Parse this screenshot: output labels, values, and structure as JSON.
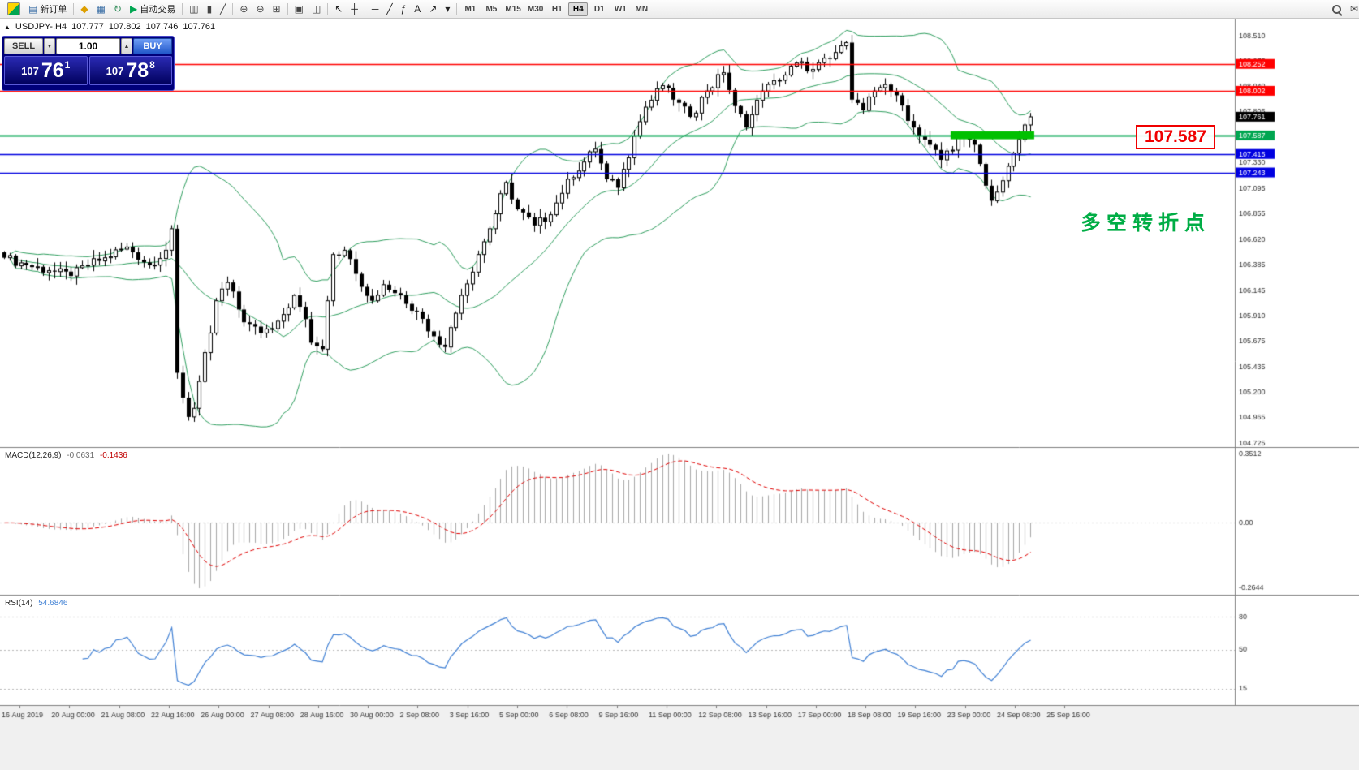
{
  "toolbar": {
    "items": [
      {
        "name": "app-logo",
        "type": "logo"
      },
      {
        "name": "new-order-button",
        "glyph": "▤",
        "glyph_color": "#3a6ea5",
        "label": "新订单"
      },
      {
        "name": "toolbar-separator-1",
        "type": "sep"
      },
      {
        "name": "market-watch-icon",
        "glyph": "◆",
        "glyph_color": "#dd9f00"
      },
      {
        "name": "data-window-icon",
        "glyph": "▦",
        "glyph_color": "#3a6ea5"
      },
      {
        "name": "refresh-icon",
        "glyph": "↻",
        "glyph_color": "#2e8b57"
      },
      {
        "name": "autotrading-button",
        "glyph": "▶",
        "glyph_color": "#00a651",
        "label": "自动交易"
      },
      {
        "name": "toolbar-separator-2",
        "type": "sep"
      },
      {
        "name": "bar-chart-icon",
        "glyph": "▥",
        "glyph_color": "#444444"
      },
      {
        "name": "candlestick-chart-icon",
        "glyph": "▮",
        "glyph_color": "#444444"
      },
      {
        "name": "line-chart-icon",
        "glyph": "╱",
        "glyph_color": "#444444"
      },
      {
        "name": "toolbar-separator-3",
        "type": "sep"
      },
      {
        "name": "zoom-in-icon",
        "glyph": "⊕",
        "glyph_color": "#444444"
      },
      {
        "name": "zoom-out-icon",
        "glyph": "⊖",
        "glyph_color": "#444444"
      },
      {
        "name": "auto-scroll-icon",
        "glyph": "⊞",
        "glyph_color": "#444444"
      },
      {
        "name": "toolbar-separator-4",
        "type": "sep"
      },
      {
        "name": "tile-windows-icon",
        "glyph": "▣",
        "glyph_color": "#444444"
      },
      {
        "name": "cascade-windows-icon",
        "glyph": "◫",
        "glyph_color": "#444444"
      },
      {
        "name": "toolbar-separator-5",
        "type": "sep"
      },
      {
        "name": "cursor-icon",
        "glyph": "↖",
        "glyph_color": "#222222"
      },
      {
        "name": "crosshair-icon",
        "glyph": "┼",
        "glyph_color": "#222222"
      },
      {
        "name": "toolbar-separator-6",
        "type": "sep"
      },
      {
        "name": "horizontal-line-icon",
        "glyph": "─",
        "glyph_color": "#222222"
      },
      {
        "name": "trendline-icon",
        "glyph": "╱",
        "glyph_color": "#222222"
      },
      {
        "name": "fibonacci-icon",
        "glyph": "ƒ",
        "glyph_color": "#222222"
      },
      {
        "name": "text-tool-icon",
        "glyph": "A",
        "glyph_color": "#222222"
      },
      {
        "name": "arrow-tool-icon",
        "glyph": "↗",
        "glyph_color": "#222222"
      },
      {
        "name": "shapes-dropdown-icon",
        "glyph": "▾",
        "glyph_color": "#222222"
      },
      {
        "name": "toolbar-separator-7",
        "type": "sep"
      },
      {
        "name": "timeframe-group",
        "type": "tf-group"
      },
      {
        "name": "toolbar-spacer",
        "type": "spacer"
      },
      {
        "name": "search-icon",
        "type": "search"
      },
      {
        "name": "chat-icon",
        "glyph": "✉",
        "glyph_color": "#444444"
      }
    ],
    "timeframes": [
      "M1",
      "M5",
      "M15",
      "M30",
      "H1",
      "H4",
      "D1",
      "W1",
      "MN"
    ],
    "active_timeframe": "H4"
  },
  "chart": {
    "symbol_period": "USDJPY-,H4",
    "collapse_icon": "▲",
    "ohlc": {
      "open": "107.777",
      "high": "107.802",
      "low": "107.746",
      "close": "107.761"
    },
    "big_price_label": "107.587",
    "big_price_label_color": "#f00000",
    "annotation": "多空转折点",
    "annotation_color": "#00ad45"
  },
  "trade_panel": {
    "sell_label": "SELL",
    "buy_label": "BUY",
    "volume": "1.00",
    "spin_down": "▼",
    "spin_up": "▲",
    "sell_price_prefix": "107",
    "sell_price_big": "76",
    "sell_price_sup": "1",
    "buy_price_prefix": "107",
    "buy_price_big": "78",
    "buy_price_sup": "8"
  },
  "chart_data": {
    "type": "candlestick",
    "symbol": "USDJPY-",
    "timeframe": "H4",
    "price_axis": {
      "min": 104.69,
      "max": 108.68,
      "ticks": [
        108.51,
        108.275,
        108.04,
        107.805,
        107.57,
        107.33,
        107.095,
        106.855,
        106.62,
        106.385,
        106.145,
        105.91,
        105.675,
        105.435,
        105.2,
        104.965,
        104.725
      ]
    },
    "current_price": 107.761,
    "current_price_label_bg": "#000000",
    "levels": [
      {
        "name": "resistance-line-1",
        "price": 108.252,
        "color": "#ff0000",
        "width": 1.4
      },
      {
        "name": "resistance-line-2",
        "price": 108.002,
        "color": "#ff0000",
        "width": 1.4
      },
      {
        "name": "pivot-line",
        "price": 107.587,
        "color": "#00a651",
        "width": 2
      },
      {
        "name": "support-line-1",
        "price": 107.415,
        "color": "#0000e0",
        "width": 1.6
      },
      {
        "name": "support-line-2",
        "price": 107.243,
        "color": "#0000e0",
        "width": 1.6
      }
    ],
    "highlight_box": {
      "from_index": 170,
      "to_index": 185,
      "price_top": 107.625,
      "price_bottom": 107.552,
      "color": "#00c000"
    },
    "candles": {
      "count": 185,
      "noise": 0.045,
      "anchors": [
        [
          0,
          106.45
        ],
        [
          4,
          106.38
        ],
        [
          8,
          106.33
        ],
        [
          12,
          106.28
        ],
        [
          15,
          106.38
        ],
        [
          18,
          106.45
        ],
        [
          22,
          106.55
        ],
        [
          26,
          106.38
        ],
        [
          29,
          106.52
        ],
        [
          30,
          106.72
        ],
        [
          31,
          105.38
        ],
        [
          32,
          105.15
        ],
        [
          33,
          104.97
        ],
        [
          34,
          105.05
        ],
        [
          35,
          105.3
        ],
        [
          37,
          105.75
        ],
        [
          38,
          106.05
        ],
        [
          40,
          106.22
        ],
        [
          43,
          105.85
        ],
        [
          46,
          105.75
        ],
        [
          49,
          105.86
        ],
        [
          52,
          106.1
        ],
        [
          54,
          105.88
        ],
        [
          55,
          105.66
        ],
        [
          57,
          105.6
        ],
        [
          58,
          106.05
        ],
        [
          59,
          106.48
        ],
        [
          61,
          106.52
        ],
        [
          63,
          106.3
        ],
        [
          66,
          106.05
        ],
        [
          68,
          106.2
        ],
        [
          71,
          106.1
        ],
        [
          74,
          105.95
        ],
        [
          77,
          105.72
        ],
        [
          79,
          105.62
        ],
        [
          82,
          106.1
        ],
        [
          85,
          106.48
        ],
        [
          87,
          106.72
        ],
        [
          90,
          107.15
        ],
        [
          92,
          106.9
        ],
        [
          95,
          106.75
        ],
        [
          98,
          106.85
        ],
        [
          101,
          107.18
        ],
        [
          104,
          107.34
        ],
        [
          106,
          107.46
        ],
        [
          108,
          107.18
        ],
        [
          110,
          107.1
        ],
        [
          113,
          107.58
        ],
        [
          115,
          107.85
        ],
        [
          118,
          108.05
        ],
        [
          120,
          107.92
        ],
        [
          123,
          107.76
        ],
        [
          126,
          108.0
        ],
        [
          129,
          108.17
        ],
        [
          131,
          107.86
        ],
        [
          133,
          107.66
        ],
        [
          136,
          108.0
        ],
        [
          139,
          108.1
        ],
        [
          142,
          108.26
        ],
        [
          145,
          108.2
        ],
        [
          148,
          108.3
        ],
        [
          150,
          108.42
        ],
        [
          151,
          108.45
        ],
        [
          152,
          107.92
        ],
        [
          154,
          107.82
        ],
        [
          156,
          108.0
        ],
        [
          158,
          108.06
        ],
        [
          160,
          107.96
        ],
        [
          163,
          107.66
        ],
        [
          166,
          107.5
        ],
        [
          168,
          107.36
        ],
        [
          171,
          107.56
        ],
        [
          174,
          107.5
        ],
        [
          176,
          107.12
        ],
        [
          177,
          106.98
        ],
        [
          178,
          107.06
        ],
        [
          180,
          107.3
        ],
        [
          182,
          107.55
        ],
        [
          184,
          107.76
        ]
      ]
    },
    "bollinger": {
      "period": 20,
      "deviation": 2,
      "color": "#2e9e5e"
    },
    "macd": {
      "label": "MACD(12,26,9)",
      "value_main": "-0.0631",
      "value_signal": "-0.1436",
      "scale_top": "0.3512",
      "scale_zero": "0.00",
      "scale_bottom": "-0.2644",
      "histogram_color": "#a8a8a8",
      "signal_color": "#e00000"
    },
    "rsi": {
      "label": "RSI(14)",
      "value": "54.6846",
      "levels": [
        80,
        50,
        15
      ],
      "color": "#3e7fd4"
    },
    "time_labels": [
      "16 Aug 2019",
      "20 Aug 00:00",
      "21 Aug 08:00",
      "22 Aug 16:00",
      "26 Aug 00:00",
      "27 Aug 08:00",
      "28 Aug 16:00",
      "30 Aug 00:00",
      "2 Sep 08:00",
      "3 Sep 16:00",
      "5 Sep 00:00",
      "6 Sep 08:00",
      "9 Sep 16:00",
      "11 Sep 00:00",
      "12 Sep 08:00",
      "13 Sep 16:00",
      "17 Sep 00:00",
      "18 Sep 08:00",
      "19 Sep 16:00",
      "23 Sep 00:00",
      "24 Sep 08:00",
      "25 Sep 16:00"
    ]
  }
}
